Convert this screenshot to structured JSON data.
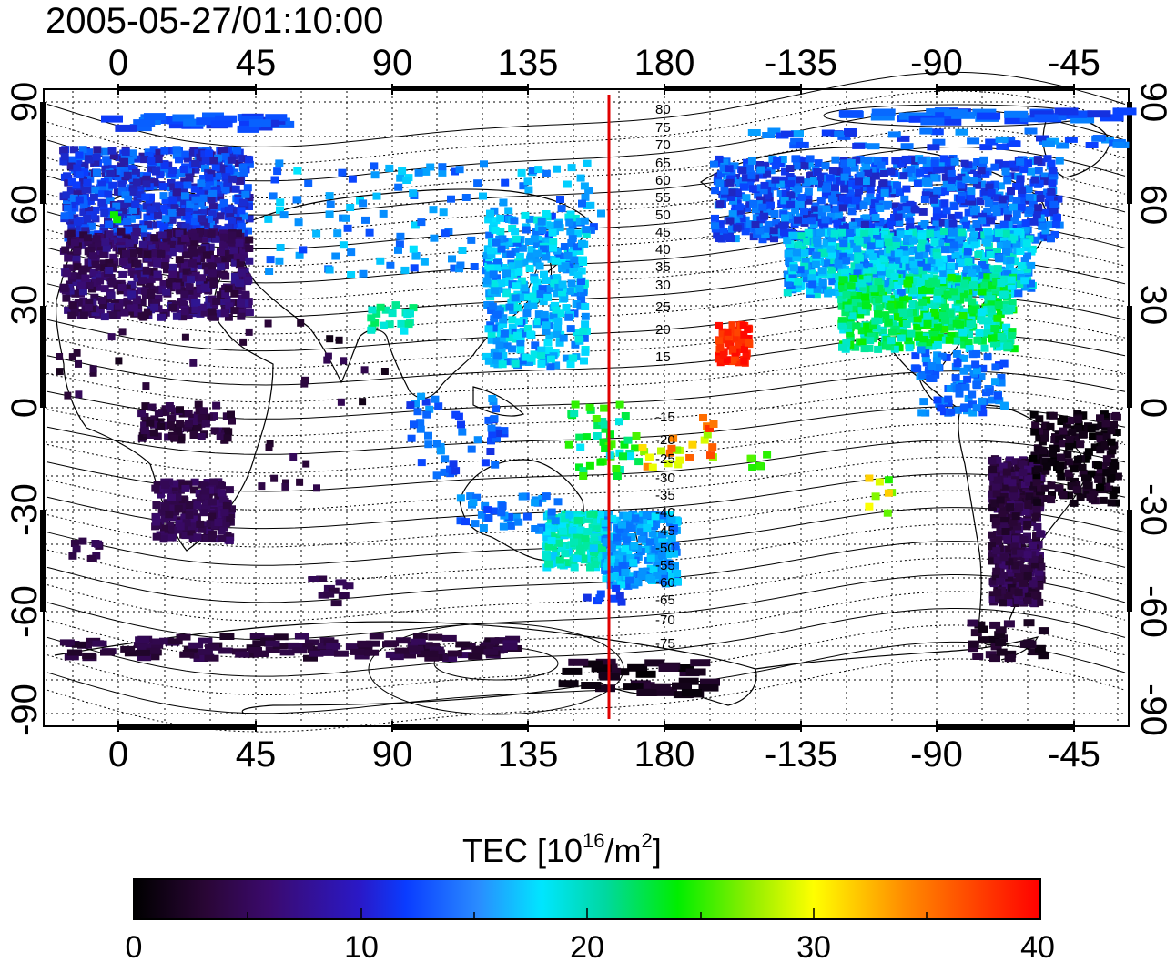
{
  "title": "2005-05-27/01:10:00",
  "top_axis_labels": [
    "0",
    "45",
    "90",
    "135",
    "180",
    "-135",
    "-90",
    "-45"
  ],
  "bottom_axis_labels": [
    "0",
    "45",
    "90",
    "135",
    "180",
    "-135",
    "-90",
    "-45"
  ],
  "left_axis_labels": [
    "90",
    "60",
    "30",
    "0",
    "-30",
    "-60",
    "-90"
  ],
  "right_axis_labels": [
    "90",
    "60",
    "30",
    "0",
    "-30",
    "-60",
    "-90"
  ],
  "colorbar": {
    "label_main": "TEC  [10",
    "label_sup1": "16",
    "label_mid": "/m",
    "label_sup2": "2",
    "label_end": "]",
    "ticks": [
      "0",
      "10",
      "20",
      "30",
      "40"
    ],
    "min": 0,
    "max": 40
  },
  "marker_line_color": "#e00000",
  "contour_labels_north": [
    "80",
    "75",
    "70",
    "65",
    "60",
    "55",
    "50",
    "45",
    "40",
    "35",
    "30",
    "25",
    "20",
    "15"
  ],
  "contour_labels_south": [
    "-15",
    "-20",
    "-25",
    "-30",
    "-35",
    "-40",
    "-45",
    "-50",
    "-55",
    "-60",
    "-65",
    "-70",
    "-75"
  ]
}
